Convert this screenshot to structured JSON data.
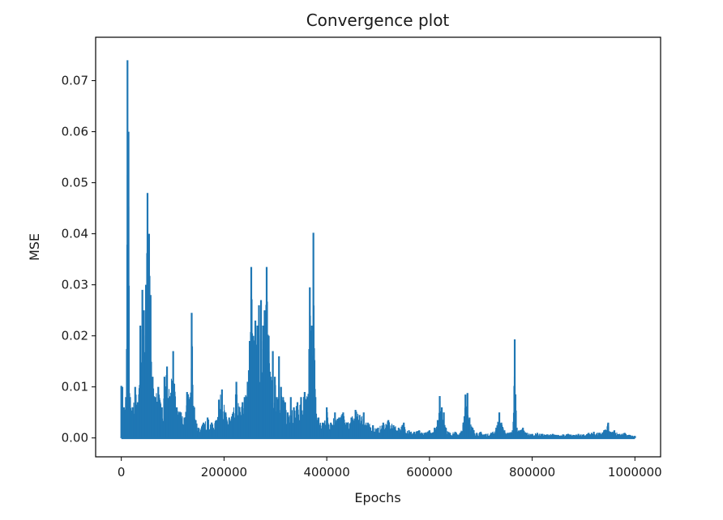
{
  "chart_data": {
    "type": "line",
    "title": "Convergence plot",
    "xlabel": "Epochs",
    "ylabel": "MSE",
    "xlim": [
      -50000,
      1050000
    ],
    "ylim": [
      -0.0037,
      0.0785
    ],
    "xticks": [
      0,
      200000,
      400000,
      600000,
      800000,
      1000000
    ],
    "xtick_labels": [
      "0",
      "200000",
      "400000",
      "600000",
      "800000",
      "1000000"
    ],
    "yticks": [
      0.0,
      0.01,
      0.02,
      0.03,
      0.04,
      0.05,
      0.06,
      0.07
    ],
    "ytick_labels": [
      "0.00",
      "0.01",
      "0.02",
      "0.03",
      "0.04",
      "0.05",
      "0.06",
      "0.07"
    ],
    "grid": false,
    "series": [
      {
        "color": "#1f77b4",
        "peaks": [
          [
            0,
            0.0102
          ],
          [
            2000,
            0.01
          ],
          [
            5000,
            0.006
          ],
          [
            9000,
            0.008
          ],
          [
            12000,
            0.074
          ],
          [
            14000,
            0.06
          ],
          [
            17000,
            0.008
          ],
          [
            22000,
            0.006
          ],
          [
            27000,
            0.01
          ],
          [
            32000,
            0.007
          ],
          [
            37000,
            0.022
          ],
          [
            41000,
            0.029
          ],
          [
            44000,
            0.025
          ],
          [
            48000,
            0.03
          ],
          [
            51000,
            0.048
          ],
          [
            54000,
            0.04
          ],
          [
            57000,
            0.028
          ],
          [
            61000,
            0.012
          ],
          [
            66000,
            0.008
          ],
          [
            72000,
            0.01
          ],
          [
            79000,
            0.006
          ],
          [
            84000,
            0.012
          ],
          [
            89000,
            0.014
          ],
          [
            95000,
            0.008
          ],
          [
            101000,
            0.017
          ],
          [
            108000,
            0.006
          ],
          [
            116000,
            0.005
          ],
          [
            123000,
            0.004
          ],
          [
            128000,
            0.009
          ],
          [
            134000,
            0.008
          ],
          [
            137000,
            0.0245
          ],
          [
            142000,
            0.006
          ],
          [
            150000,
            0.002
          ],
          [
            160000,
            0.003
          ],
          [
            168000,
            0.004
          ],
          [
            176000,
            0.003
          ],
          [
            185000,
            0.0035
          ],
          [
            190000,
            0.0075
          ],
          [
            196000,
            0.0095
          ],
          [
            203000,
            0.005
          ],
          [
            210000,
            0.004
          ],
          [
            218000,
            0.005
          ],
          [
            224000,
            0.011
          ],
          [
            230000,
            0.006
          ],
          [
            236000,
            0.007
          ],
          [
            240000,
            0.008
          ],
          [
            246000,
            0.011
          ],
          [
            250000,
            0.019
          ],
          [
            253000,
            0.0335
          ],
          [
            257000,
            0.02
          ],
          [
            261000,
            0.023
          ],
          [
            265000,
            0.022
          ],
          [
            268000,
            0.026
          ],
          [
            272000,
            0.027
          ],
          [
            276000,
            0.022
          ],
          [
            279000,
            0.025
          ],
          [
            283000,
            0.0335
          ],
          [
            287000,
            0.02
          ],
          [
            291000,
            0.012
          ],
          [
            295000,
            0.017
          ],
          [
            299000,
            0.012
          ],
          [
            303000,
            0.008
          ],
          [
            307000,
            0.016
          ],
          [
            311000,
            0.01
          ],
          [
            315000,
            0.008
          ],
          [
            319000,
            0.007
          ],
          [
            324000,
            0.005
          ],
          [
            330000,
            0.008
          ],
          [
            336000,
            0.006
          ],
          [
            343000,
            0.007
          ],
          [
            350000,
            0.008
          ],
          [
            357000,
            0.009
          ],
          [
            363000,
            0.008
          ],
          [
            367000,
            0.0295
          ],
          [
            371000,
            0.022
          ],
          [
            374000,
            0.0402
          ],
          [
            378000,
            0.008
          ],
          [
            384000,
            0.004
          ],
          [
            392000,
            0.003
          ],
          [
            400000,
            0.006
          ],
          [
            408000,
            0.003
          ],
          [
            416000,
            0.005
          ],
          [
            424000,
            0.004
          ],
          [
            432000,
            0.005
          ],
          [
            440000,
            0.003
          ],
          [
            448000,
            0.004
          ],
          [
            456000,
            0.0055
          ],
          [
            464000,
            0.0045
          ],
          [
            472000,
            0.005
          ],
          [
            480000,
            0.003
          ],
          [
            490000,
            0.0025
          ],
          [
            500000,
            0.002
          ],
          [
            510000,
            0.003
          ],
          [
            520000,
            0.0035
          ],
          [
            530000,
            0.0025
          ],
          [
            540000,
            0.002
          ],
          [
            550000,
            0.003
          ],
          [
            560000,
            0.0015
          ],
          [
            570000,
            0.0012
          ],
          [
            580000,
            0.0015
          ],
          [
            590000,
            0.001
          ],
          [
            600000,
            0.0015
          ],
          [
            610000,
            0.002
          ],
          [
            616000,
            0.0035
          ],
          [
            620000,
            0.0082
          ],
          [
            624000,
            0.006
          ],
          [
            628000,
            0.005
          ],
          [
            632000,
            0.002
          ],
          [
            640000,
            0.001
          ],
          [
            650000,
            0.0012
          ],
          [
            660000,
            0.001
          ],
          [
            666000,
            0.003
          ],
          [
            670000,
            0.0085
          ],
          [
            674000,
            0.0088
          ],
          [
            678000,
            0.004
          ],
          [
            684000,
            0.002
          ],
          [
            692000,
            0.001
          ],
          [
            700000,
            0.0012
          ],
          [
            710000,
            0.0008
          ],
          [
            720000,
            0.001
          ],
          [
            730000,
            0.002
          ],
          [
            736000,
            0.005
          ],
          [
            740000,
            0.003
          ],
          [
            746000,
            0.0015
          ],
          [
            754000,
            0.001
          ],
          [
            762000,
            0.0015
          ],
          [
            766000,
            0.0193
          ],
          [
            770000,
            0.002
          ],
          [
            776000,
            0.0015
          ],
          [
            782000,
            0.002
          ],
          [
            790000,
            0.001
          ],
          [
            800000,
            0.0008
          ],
          [
            810000,
            0.001
          ],
          [
            820000,
            0.0008
          ],
          [
            830000,
            0.0007
          ],
          [
            840000,
            0.0008
          ],
          [
            850000,
            0.0006
          ],
          [
            860000,
            0.0007
          ],
          [
            870000,
            0.0008
          ],
          [
            880000,
            0.0006
          ],
          [
            890000,
            0.0008
          ],
          [
            900000,
            0.0007
          ],
          [
            910000,
            0.001
          ],
          [
            920000,
            0.0012
          ],
          [
            930000,
            0.001
          ],
          [
            940000,
            0.0015
          ],
          [
            948000,
            0.003
          ],
          [
            952000,
            0.0012
          ],
          [
            960000,
            0.0015
          ],
          [
            970000,
            0.0008
          ],
          [
            980000,
            0.001
          ],
          [
            990000,
            0.0006
          ],
          [
            1000000,
            0.0004
          ]
        ]
      }
    ]
  }
}
